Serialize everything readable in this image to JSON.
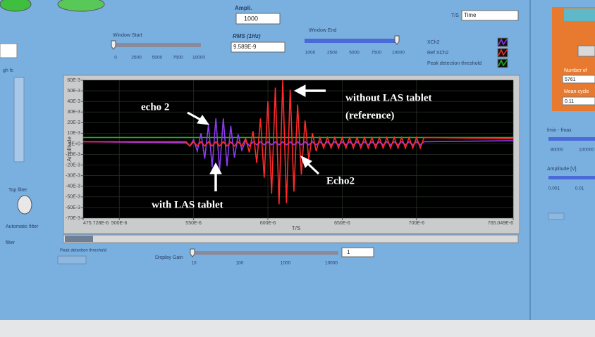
{
  "window": {
    "ampli_label": "Ampli.",
    "ampli_value": "1000",
    "ts_label": "T/S",
    "ts_value": "Time",
    "window_start": "Window Start",
    "window_start_scale": [
      "0",
      "2500",
      "5000",
      "7500",
      "10000"
    ],
    "rms_label": "RMS (1Hz)",
    "rms_value": "9.589E-9",
    "window_end": "Window End",
    "window_end_scale": [
      "1000",
      "2500",
      "5000",
      "7500",
      "10000"
    ],
    "left_panel": {
      "hp_fc": "gh fc",
      "top_filter": "Top filter",
      "automatic_filter": "Automatic filter",
      "filter": "filter"
    },
    "right_panel": {
      "number_label": "Number of",
      "number_value": "5761",
      "mean_cycle_label": "Mean cycle",
      "mean_cycle_value": "0.11",
      "fmin_fmax": "fmin - fmax",
      "freq_scale": [
        "80000",
        "100000"
      ],
      "amplitude_label": "Amplitude [V]",
      "amplitude_scale": [
        "0.001",
        "0.01"
      ]
    },
    "bottom": {
      "peak_threshold_label": "Peak detection threshold",
      "display_gain": "Display Gain",
      "gain_scale": [
        "10",
        "100",
        "1000",
        "10000"
      ],
      "gain_value": "1"
    }
  },
  "chart_data": {
    "type": "line",
    "x_label": "T/S",
    "y_label": "Amplitude",
    "annotations": [
      "echo 2",
      "without  LAS tablet",
      "(reference)",
      "with  LAS tablet",
      "Echo2"
    ],
    "xlim": [
      0.000475728,
      0.000765049
    ],
    "xticks": [
      {
        "value": 0.000475728,
        "label": "475.728E-6"
      },
      {
        "value": 0.0005,
        "label": "500E-6"
      },
      {
        "value": 0.00055,
        "label": "550E-6"
      },
      {
        "value": 0.0006,
        "label": "600E-6"
      },
      {
        "value": 0.00065,
        "label": "650E-6"
      },
      {
        "value": 0.0007,
        "label": "700E-6"
      },
      {
        "value": 0.000765049,
        "label": "765.049E-6"
      }
    ],
    "ylim": [
      -0.07,
      0.06
    ],
    "yticks": [
      {
        "value": 0.06,
        "label": "60E-3"
      },
      {
        "value": 0.05,
        "label": "50E-3"
      },
      {
        "value": 0.04,
        "label": "40E-3"
      },
      {
        "value": 0.03,
        "label": "30E-3"
      },
      {
        "value": 0.02,
        "label": "20E-3"
      },
      {
        "value": 0.01,
        "label": "10E-3"
      },
      {
        "value": 0,
        "label": "0E+0"
      },
      {
        "value": -0.01,
        "label": "-10E-3"
      },
      {
        "value": -0.02,
        "label": "-20E-3"
      },
      {
        "value": -0.03,
        "label": "-30E-3"
      },
      {
        "value": -0.04,
        "label": "-40E-3"
      },
      {
        "value": -0.05,
        "label": "-50E-3"
      },
      {
        "value": -0.06,
        "label": "-60E-3"
      },
      {
        "value": -0.07,
        "label": "-70E-3"
      }
    ],
    "grid": true,
    "x": [
      0.000475728,
      0.000545,
      0.0005475,
      0.00055,
      0.0005525,
      0.000555,
      0.0005575,
      0.00056,
      0.0005625,
      0.000565,
      0.0005675,
      0.00057,
      0.0005725,
      0.000575,
      0.0005775,
      0.00058,
      0.0005825,
      0.000585,
      0.0005875,
      0.00059,
      0.0005925,
      0.000595,
      0.0005975,
      0.0006,
      0.0006025,
      0.000605,
      0.0006075,
      0.00061,
      0.0006125,
      0.000615,
      0.0006175,
      0.00062,
      0.0006225,
      0.000625,
      0.0006275,
      0.00063,
      0.0006325,
      0.000635,
      0.0006375,
      0.00064,
      0.0006425,
      0.000645,
      0.0006475,
      0.00065,
      0.0006525,
      0.000655,
      0.0006575,
      0.00066,
      0.0006625,
      0.000665,
      0.0006675,
      0.00067,
      0.0006725,
      0.000675,
      0.0006775,
      0.00068,
      0.0006825,
      0.000685,
      0.0006875,
      0.00069,
      0.0006925,
      0.000695,
      0.0006975,
      0.0007,
      0.0007025,
      0.000705,
      0.000765049
    ],
    "series": [
      {
        "name": "XCh2",
        "color": "#8a3cf0",
        "values": [
          0.002,
          0.001,
          -0.002,
          0.004,
          -0.007,
          0.01,
          -0.014,
          0.018,
          -0.022,
          0.024,
          -0.025,
          0.024,
          -0.021,
          0.017,
          -0.013,
          0.009,
          -0.006,
          0.003,
          -0.002,
          0.002,
          -0.001,
          0.002,
          -0.001,
          0.002,
          -0.001,
          0.002,
          -0.001,
          0.002,
          -0.001,
          0.002,
          -0.001,
          0.002,
          -0.001,
          0.002,
          -0.001,
          0.002,
          -0.001,
          0.002,
          -0.001,
          0.002,
          -0.001,
          0.002,
          -0.001,
          0.002,
          -0.001,
          0.002,
          -0.001,
          0.002,
          -0.001,
          0.002,
          -0.001,
          0.002,
          -0.001,
          0.002,
          -0.001,
          0.002,
          -0.001,
          0.002,
          -0.001,
          0.002,
          -0.001,
          0.002,
          -0.001,
          0.002,
          -0.001,
          0.002,
          0.003
        ]
      },
      {
        "name": "Ref XCh2",
        "color": "#ff2a2a",
        "values": [
          0.002,
          0.002,
          -0.002,
          0.002,
          -0.002,
          0.002,
          -0.002,
          0.002,
          -0.002,
          0.002,
          -0.002,
          0.002,
          -0.002,
          0.002,
          -0.002,
          0.002,
          -0.002,
          0.005,
          -0.008,
          0.012,
          -0.018,
          0.024,
          -0.032,
          0.04,
          -0.047,
          0.053,
          -0.057,
          0.06,
          -0.056,
          0.051,
          -0.045,
          0.037,
          -0.029,
          0.022,
          -0.015,
          0.01,
          -0.007,
          0.006,
          -0.004,
          0.006,
          -0.004,
          0.006,
          -0.004,
          0.006,
          -0.004,
          0.006,
          -0.004,
          0.006,
          -0.004,
          0.006,
          -0.004,
          0.006,
          -0.004,
          0.006,
          -0.004,
          0.006,
          -0.004,
          0.006,
          -0.004,
          0.006,
          -0.004,
          0.006,
          -0.004,
          0.006,
          -0.004,
          0.006,
          0.005
        ]
      },
      {
        "name": "Peak detection threshold",
        "color": "#1bb81b",
        "x": [
          0.000475728,
          0.000765049
        ],
        "values": [
          0.006,
          0.006
        ]
      }
    ]
  }
}
